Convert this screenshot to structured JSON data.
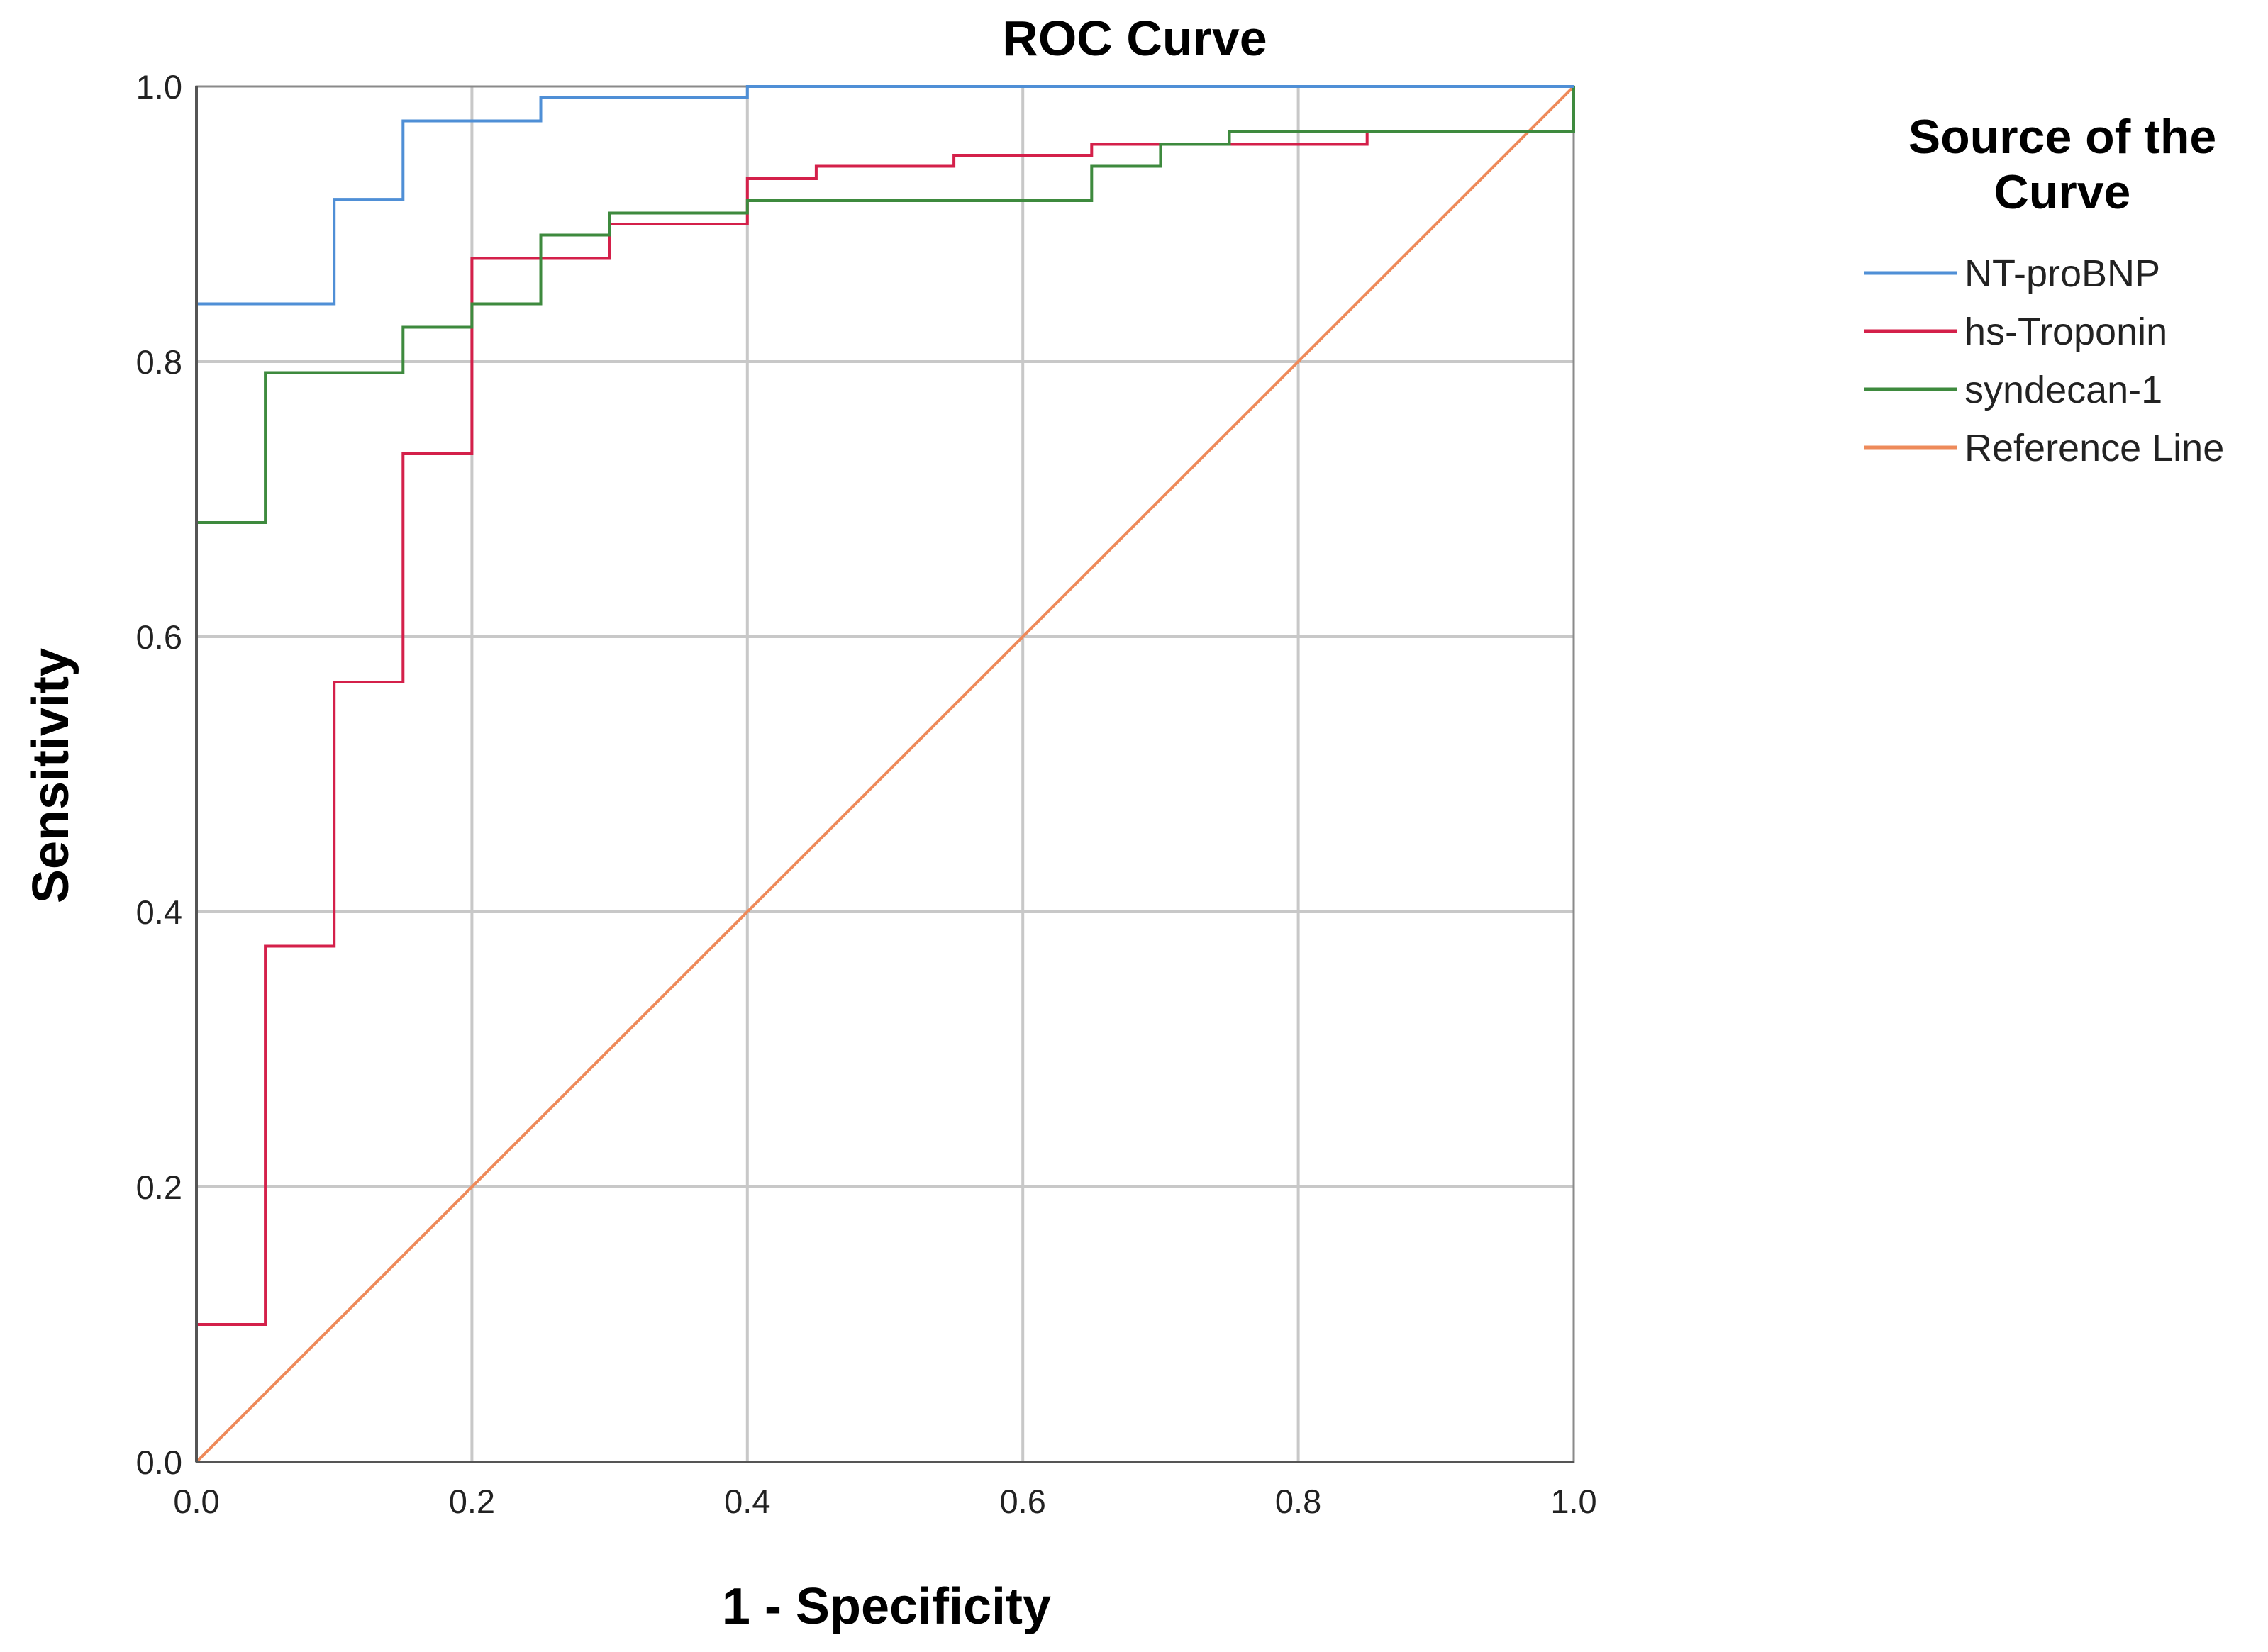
{
  "chart_data": {
    "type": "line",
    "title": "ROC Curve",
    "xlabel": "1 - Specificity",
    "ylabel": "Sensitivity",
    "xlim": [
      0.0,
      1.0
    ],
    "ylim": [
      0.0,
      1.0
    ],
    "x_ticks": [
      "0.0",
      "0.2",
      "0.4",
      "0.6",
      "0.8",
      "1.0"
    ],
    "y_ticks": [
      "0.0",
      "0.2",
      "0.4",
      "0.6",
      "0.8",
      "1.0"
    ],
    "grid": true,
    "legend": {
      "title_lines": [
        "Source of the",
        "Curve"
      ],
      "placement": "right"
    },
    "series": [
      {
        "name": "NT-proBNP",
        "color": "#4f8fd6",
        "points": [
          [
            0,
            0
          ],
          [
            0,
            0.842
          ],
          [
            0.1,
            0.842
          ],
          [
            0.1,
            0.918
          ],
          [
            0.15,
            0.918
          ],
          [
            0.15,
            0.975
          ],
          [
            0.25,
            0.975
          ],
          [
            0.25,
            0.992
          ],
          [
            0.4,
            0.992
          ],
          [
            0.4,
            1.0
          ],
          [
            1.0,
            1.0
          ]
        ]
      },
      {
        "name": "hs-Troponin",
        "color": "#d4204a",
        "points": [
          [
            0,
            0
          ],
          [
            0,
            0.1
          ],
          [
            0.05,
            0.1
          ],
          [
            0.05,
            0.375
          ],
          [
            0.1,
            0.375
          ],
          [
            0.1,
            0.567
          ],
          [
            0.15,
            0.567
          ],
          [
            0.15,
            0.733
          ],
          [
            0.2,
            0.733
          ],
          [
            0.2,
            0.875
          ],
          [
            0.3,
            0.875
          ],
          [
            0.3,
            0.9
          ],
          [
            0.4,
            0.9
          ],
          [
            0.4,
            0.933
          ],
          [
            0.45,
            0.933
          ],
          [
            0.45,
            0.942
          ],
          [
            0.55,
            0.942
          ],
          [
            0.55,
            0.95
          ],
          [
            0.65,
            0.95
          ],
          [
            0.65,
            0.958
          ],
          [
            0.85,
            0.958
          ],
          [
            0.85,
            0.967
          ],
          [
            1.0,
            0.967
          ],
          [
            1.0,
            1.0
          ]
        ]
      },
      {
        "name": "syndecan-1",
        "color": "#3e8a3e",
        "points": [
          [
            0,
            0
          ],
          [
            0,
            0.683
          ],
          [
            0.05,
            0.683
          ],
          [
            0.05,
            0.792
          ],
          [
            0.15,
            0.792
          ],
          [
            0.15,
            0.825
          ],
          [
            0.2,
            0.825
          ],
          [
            0.2,
            0.842
          ],
          [
            0.25,
            0.842
          ],
          [
            0.25,
            0.892
          ],
          [
            0.3,
            0.892
          ],
          [
            0.3,
            0.908
          ],
          [
            0.4,
            0.908
          ],
          [
            0.4,
            0.917
          ],
          [
            0.65,
            0.917
          ],
          [
            0.65,
            0.942
          ],
          [
            0.7,
            0.942
          ],
          [
            0.7,
            0.958
          ],
          [
            0.75,
            0.958
          ],
          [
            0.75,
            0.967
          ],
          [
            1.0,
            0.967
          ],
          [
            1.0,
            1.0
          ]
        ]
      },
      {
        "name": "Reference Line",
        "color": "#ee8a5a",
        "points": [
          [
            0,
            0
          ],
          [
            1,
            1
          ]
        ]
      }
    ]
  }
}
